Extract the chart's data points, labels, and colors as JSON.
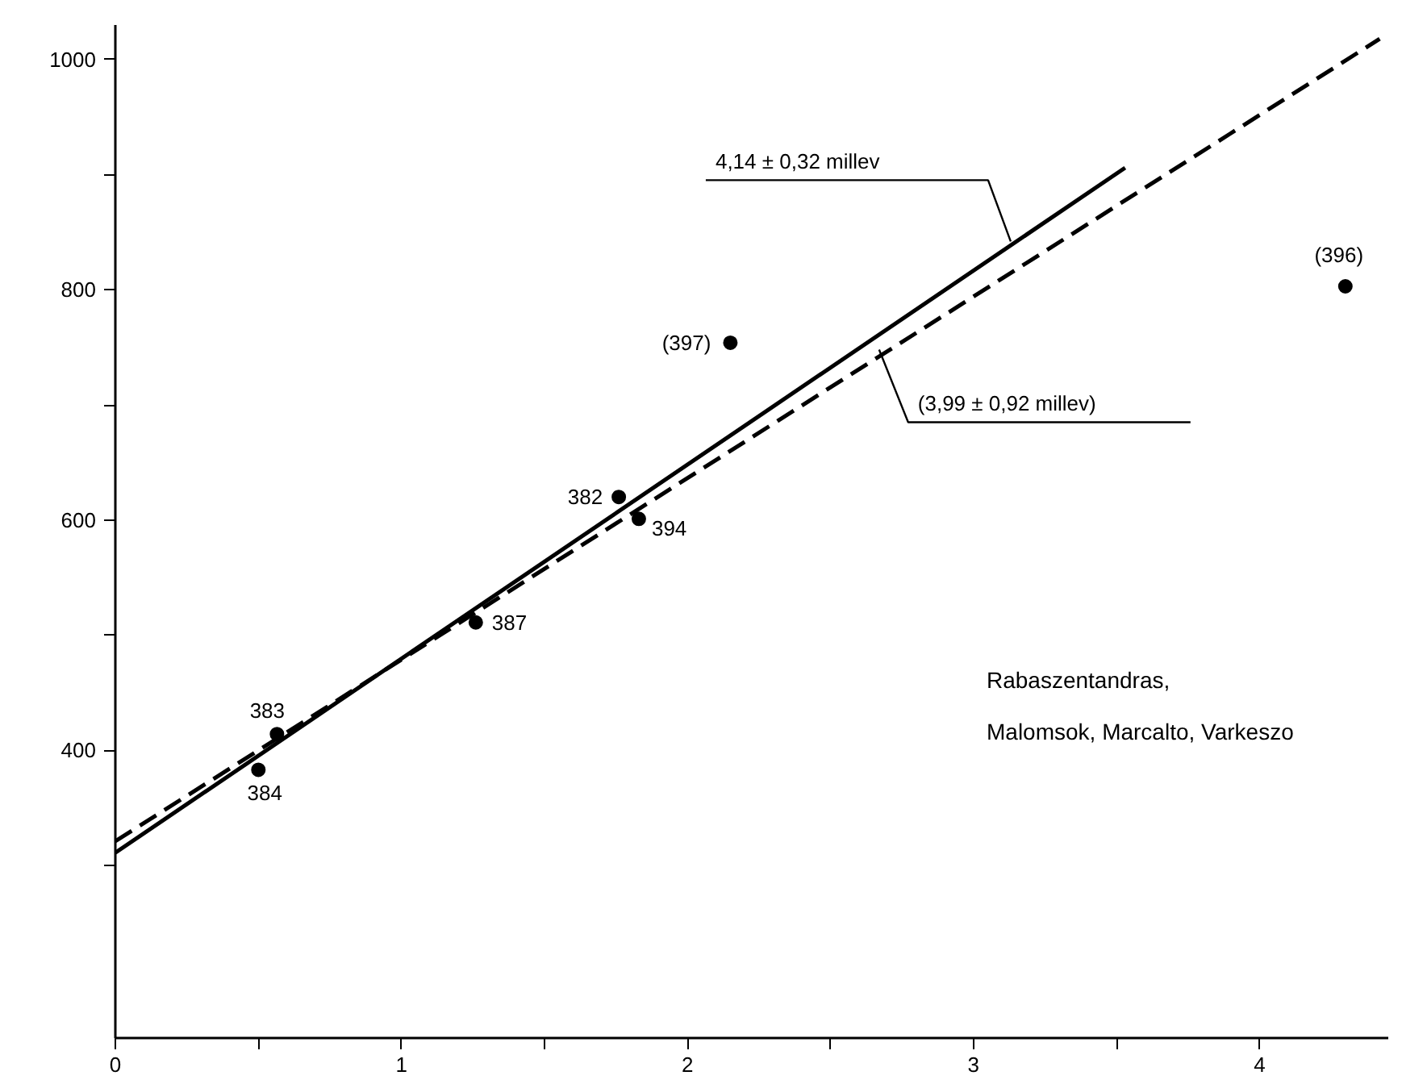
{
  "chart_data": {
    "type": "scatter",
    "xlim": [
      0,
      4.45
    ],
    "ylim": [
      150,
      1030
    ],
    "xticks": [
      0,
      {
        "value": 0.5,
        "label": null
      },
      1,
      {
        "value": 1.5,
        "label": null
      },
      2,
      {
        "value": 2.5,
        "label": null
      },
      3,
      {
        "value": 3.5,
        "label": null
      },
      4
    ],
    "yticks": [
      {
        "value": 300,
        "label": null
      },
      400,
      {
        "value": 500,
        "label": null
      },
      600,
      {
        "value": 700,
        "label": null
      },
      800,
      {
        "value": 900,
        "label": null
      },
      1000
    ],
    "grid": false,
    "series": [
      {
        "marker": "circle",
        "color": "#000000",
        "x": [
          0.565,
          0.5,
          1.26,
          1.76,
          1.83,
          2.15,
          4.3
        ],
        "values": [
          414,
          383,
          511,
          620,
          601,
          754,
          803
        ]
      },
      {
        "type": "line",
        "marker": "none",
        "color": "#000000",
        "line_style": "solid",
        "x": [
          0,
          3.53
        ],
        "values": [
          311,
          906
        ]
      },
      {
        "type": "line",
        "marker": "none",
        "color": "#000000",
        "line_style": "dashed",
        "x": [
          0,
          4.42
        ],
        "values": [
          321,
          1018
        ]
      }
    ],
    "annotations": [
      {
        "text": "383",
        "x": 0.565,
        "y": 414
      },
      {
        "text": "384",
        "x": 0.5,
        "y": 383
      },
      {
        "text": "387",
        "x": 1.26,
        "y": 511
      },
      {
        "text": "382",
        "x": 1.76,
        "y": 620
      },
      {
        "text": "394",
        "x": 1.83,
        "y": 601
      },
      {
        "text": "(397)",
        "x": 2.15,
        "y": 754
      },
      {
        "text": "(396)",
        "x": 4.3,
        "y": 803
      },
      {
        "text": "4,14 ± 0,32 millev",
        "x": 3.13,
        "y": 842
      },
      {
        "text": "(3,99 ± 0,92 millev)",
        "x": 2.67,
        "y": 748
      },
      "Rabaszentandras,\nMalomsok, Marcalto, Varkeszo"
    ]
  }
}
